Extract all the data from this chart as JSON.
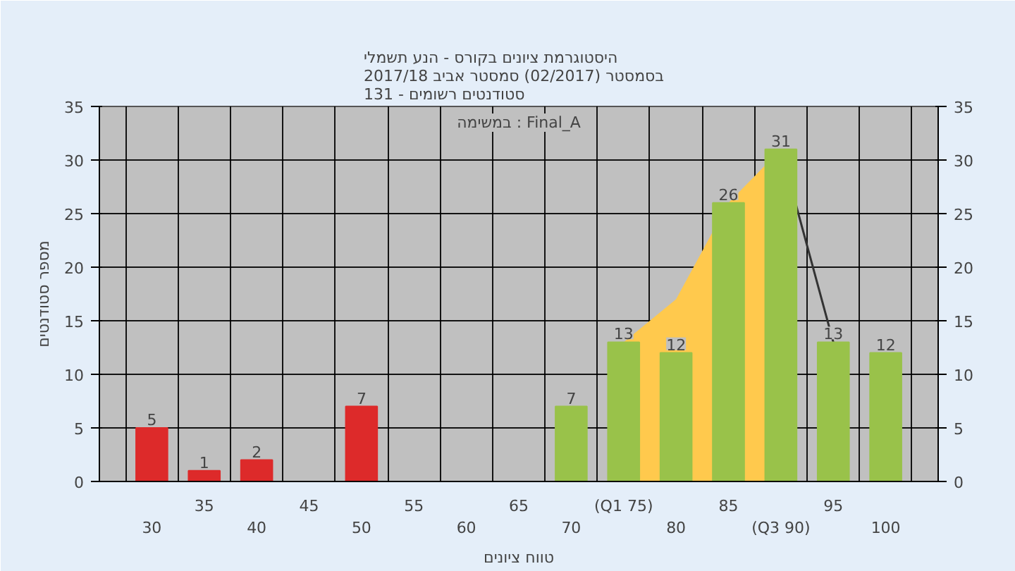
{
  "chart_data": {
    "type": "bar",
    "title": "היסטוגרמת ציונים בקורס - הנע תשמלי\nבסמסטר  (02/2017)  סמסטר אביב 2017/18\nסטודנטים רשומים - 131",
    "xlabel": "טווח ציונים",
    "ylabel": "מספר סטודנטים",
    "annotations": [
      "במשימה : Final_A"
    ],
    "categories": [
      "30",
      "35",
      "40",
      "45",
      "50",
      "55",
      "60",
      "65",
      "70",
      "(Q1 75)",
      "80",
      "85",
      "(Q3 90)",
      "95",
      "100"
    ],
    "series": [
      {
        "type": "area",
        "color": "#ffc94d",
        "values": [
          null,
          null,
          null,
          null,
          null,
          null,
          null,
          null,
          null,
          13,
          17,
          26,
          31,
          null,
          null
        ]
      },
      {
        "type": "line",
        "color": "#333333",
        "values": [
          null,
          null,
          null,
          null,
          null,
          null,
          null,
          null,
          null,
          null,
          null,
          null,
          31,
          13,
          null
        ]
      },
      {
        "colors": [
          "#dd2a2a",
          "#dd2a2a",
          "#dd2a2a",
          "#dd2a2a",
          "#dd2a2a",
          "#dd2a2a",
          "#99c24a",
          "#99c24a",
          "#99c24a",
          "#99c24a",
          "#99c24a",
          "#99c24a",
          "#99c24a",
          "#99c24a",
          "#99c24a"
        ],
        "values": [
          5,
          1,
          2,
          0,
          7,
          0,
          0,
          0,
          7,
          13,
          12,
          26,
          31,
          13,
          12
        ],
        "value_labels": [
          "5",
          "1",
          "2",
          null,
          "7",
          null,
          null,
          null,
          "7",
          "13",
          "12",
          "26",
          "31",
          "13",
          "12"
        ]
      }
    ],
    "ylim": [
      0,
      35
    ],
    "yticks": [
      0,
      5,
      10,
      15,
      20,
      25,
      30,
      35
    ],
    "y2lim": [
      0,
      35
    ],
    "y2ticks": [
      0,
      5,
      10,
      15,
      20,
      25,
      30,
      35
    ],
    "grid": true
  }
}
